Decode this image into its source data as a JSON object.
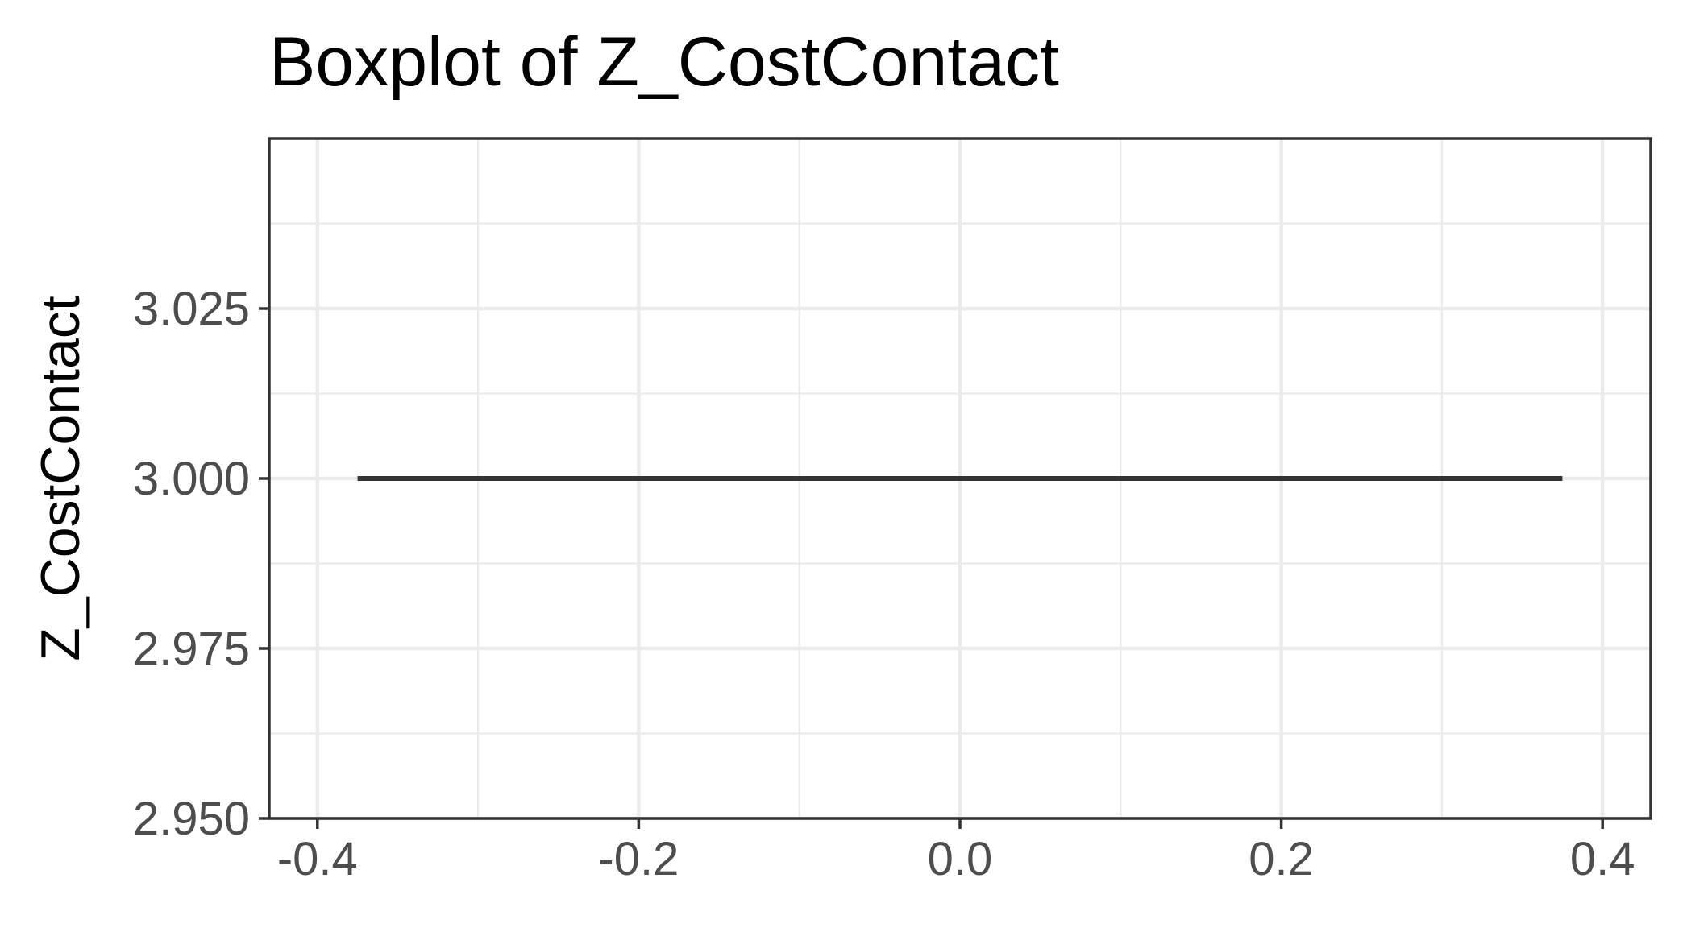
{
  "chart_data": {
    "type": "box",
    "title": "Boxplot of Z_CostContact",
    "xlabel": "",
    "ylabel": "Z_CostContact",
    "xlim": [
      -0.43,
      0.43
    ],
    "ylim": [
      2.95,
      3.05
    ],
    "x_ticks": [
      -0.4,
      -0.2,
      0.0,
      0.2,
      0.4
    ],
    "x_tick_labels": [
      "-0.4",
      "-0.2",
      "0.0",
      "0.2",
      "0.4"
    ],
    "y_ticks": [
      2.95,
      2.975,
      3.0,
      3.025
    ],
    "y_tick_labels": [
      "2.950",
      "2.975",
      "3.000",
      "3.025"
    ],
    "x_minor": [
      -0.3,
      -0.1,
      0.1,
      0.3
    ],
    "y_minor": [
      2.9625,
      2.9875,
      3.0125,
      3.0375
    ],
    "grid": true,
    "theme": "bw",
    "colors": {
      "median": "#333333",
      "grid": "#ebebeb",
      "border": "#333333",
      "tick_text": "#4d4d4d"
    },
    "boxes": [
      {
        "x_min": -0.375,
        "x_max": 0.375,
        "min": 3.0,
        "q1": 3.0,
        "median": 3.0,
        "q3": 3.0,
        "max": 3.0
      }
    ]
  }
}
